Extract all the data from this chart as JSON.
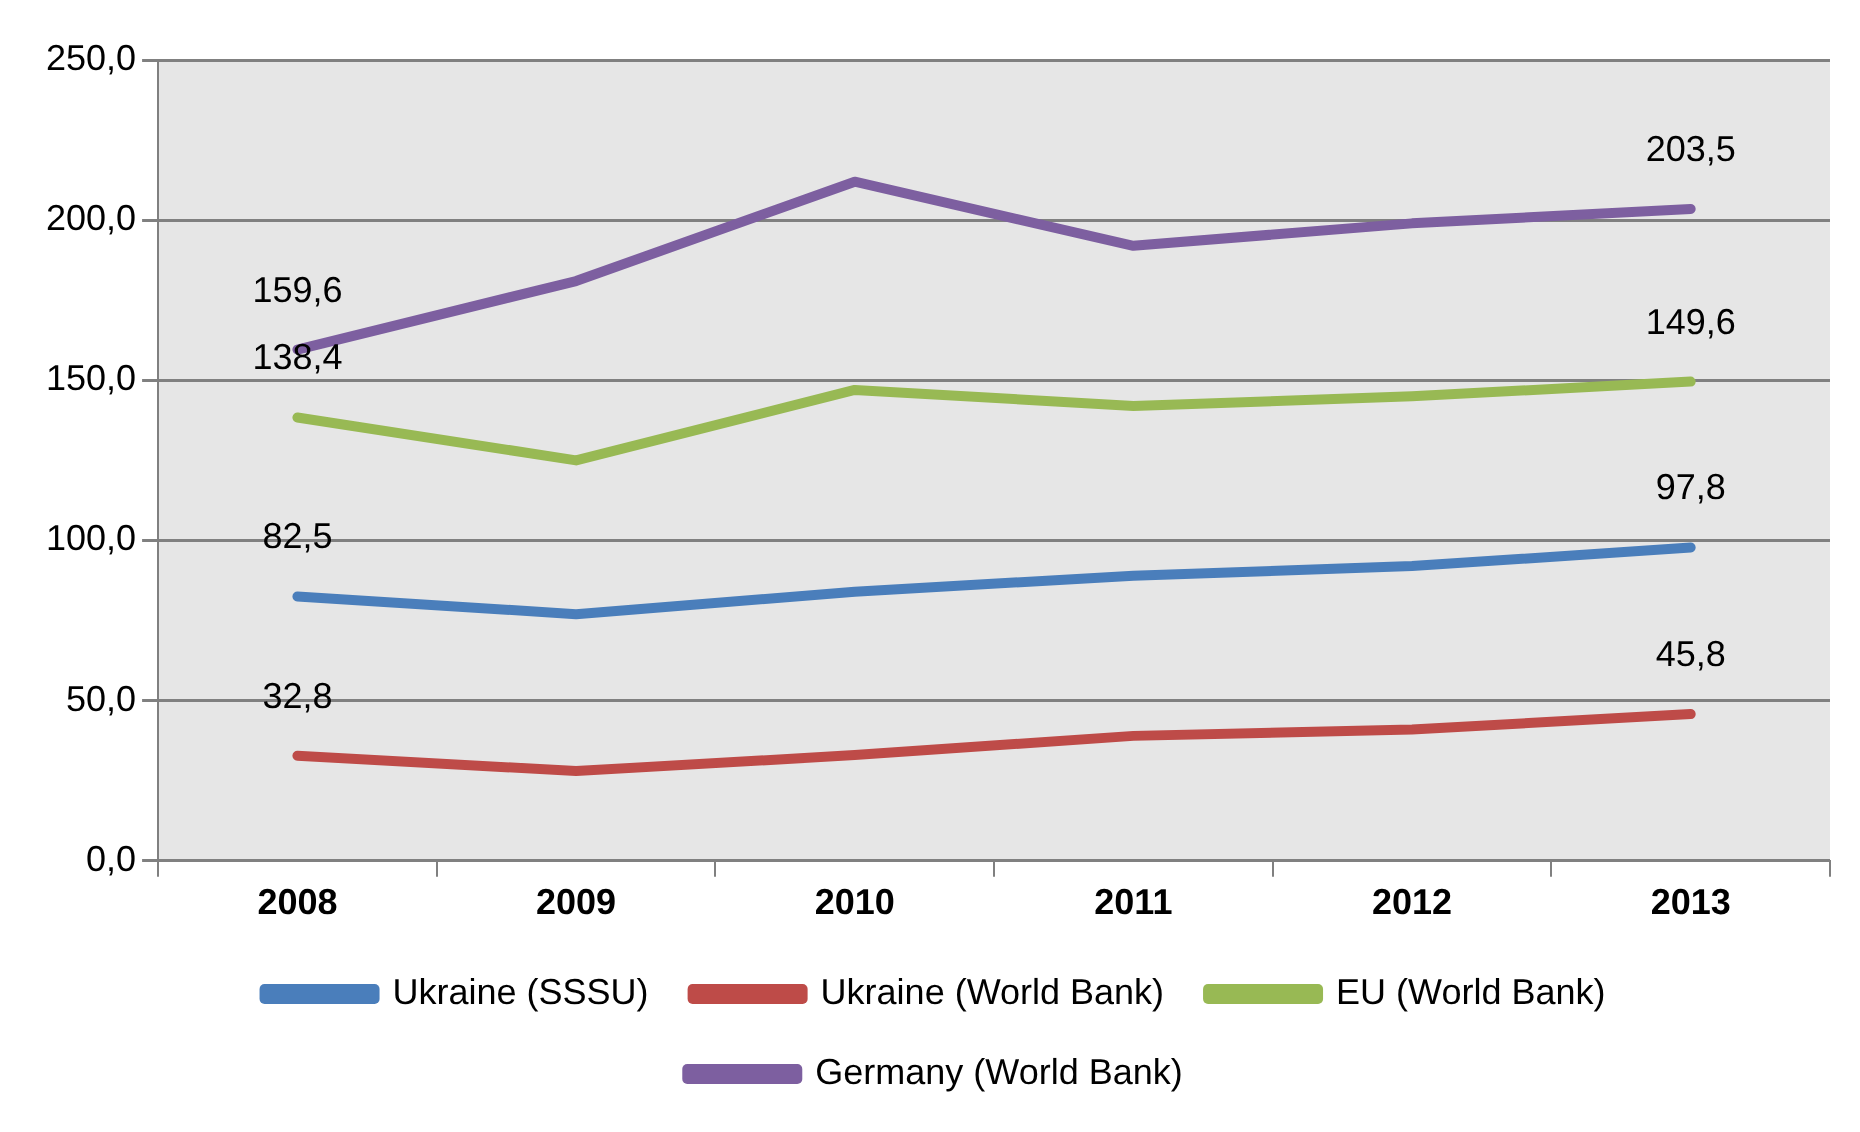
{
  "chart_data": {
    "type": "line",
    "categories": [
      "2008",
      "2009",
      "2010",
      "2011",
      "2012",
      "2013"
    ],
    "series": [
      {
        "name": "Ukraine (SSSU)",
        "color": "#4a7ebb",
        "values": [
          82.5,
          77,
          84,
          89,
          92,
          97.8
        ],
        "value_labels": [
          "82,5",
          null,
          null,
          null,
          null,
          "97,8"
        ]
      },
      {
        "name": "Ukraine (World Bank)",
        "color": "#be4b48",
        "values": [
          32.8,
          28,
          33,
          39,
          41,
          45.8
        ],
        "value_labels": [
          "32,8",
          null,
          null,
          null,
          null,
          "45,8"
        ]
      },
      {
        "name": "EU (World Bank)",
        "color": "#98b954",
        "values": [
          138.4,
          125,
          147,
          142,
          145,
          149.6
        ],
        "value_labels": [
          "138,4",
          null,
          null,
          null,
          null,
          "149,6"
        ]
      },
      {
        "name": "Germany (World Bank)",
        "color": "#7d5fa0",
        "values": [
          159.6,
          181,
          212,
          192,
          199,
          203.5
        ],
        "value_labels": [
          "159,6",
          null,
          null,
          null,
          null,
          "203,5"
        ]
      }
    ],
    "ylim": [
      0,
      250
    ],
    "yticks": [
      {
        "value": 0,
        "label": "0,0"
      },
      {
        "value": 50,
        "label": "50,0"
      },
      {
        "value": 100,
        "label": "100,0"
      },
      {
        "value": 150,
        "label": "150,0"
      },
      {
        "value": 200,
        "label": "200,0"
      },
      {
        "value": 250,
        "label": "250,0"
      }
    ],
    "grid": "y",
    "legend": "bottom",
    "marker": "none",
    "line_style": "solid"
  }
}
